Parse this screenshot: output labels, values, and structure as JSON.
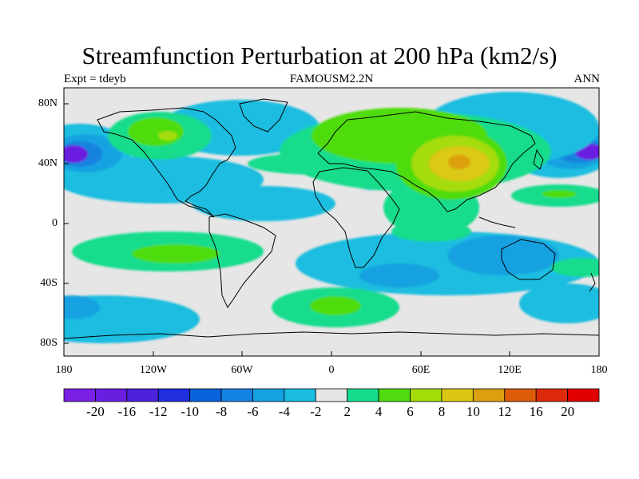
{
  "title": "Streamfunction Perturbation at 200 hPa (km2/s)",
  "subtitle_left": "Expt = tdeyb",
  "subtitle_center": "FAMOUSM2.2N",
  "subtitle_right": "ANN",
  "map": {
    "projection": "cylindrical equidistant",
    "lon_range": [
      -180,
      180
    ],
    "lat_range": [
      -90,
      90
    ],
    "lat_ticks": [
      "80N",
      "40N",
      "0",
      "40S",
      "80S"
    ],
    "lon_ticks": [
      "180",
      "120W",
      "60W",
      "0",
      "60E",
      "120E",
      "180"
    ]
  },
  "colorbar": {
    "labels": [
      "-20",
      "-16",
      "-12",
      "-10",
      "-8",
      "-6",
      "-4",
      "-2",
      "2",
      "4",
      "6",
      "8",
      "10",
      "12",
      "16",
      "20"
    ],
    "colors": [
      "#7a1fe6",
      "#6a1ee0",
      "#4c22dc",
      "#1f2fe0",
      "#0a62dc",
      "#1482e0",
      "#14a2e0",
      "#1abde0",
      "#e6e6e6",
      "#14dc8c",
      "#50dc10",
      "#a4dc0a",
      "#dcc814",
      "#dca010",
      "#dc5c0a",
      "#dc2a0a",
      "#e00000"
    ]
  }
}
